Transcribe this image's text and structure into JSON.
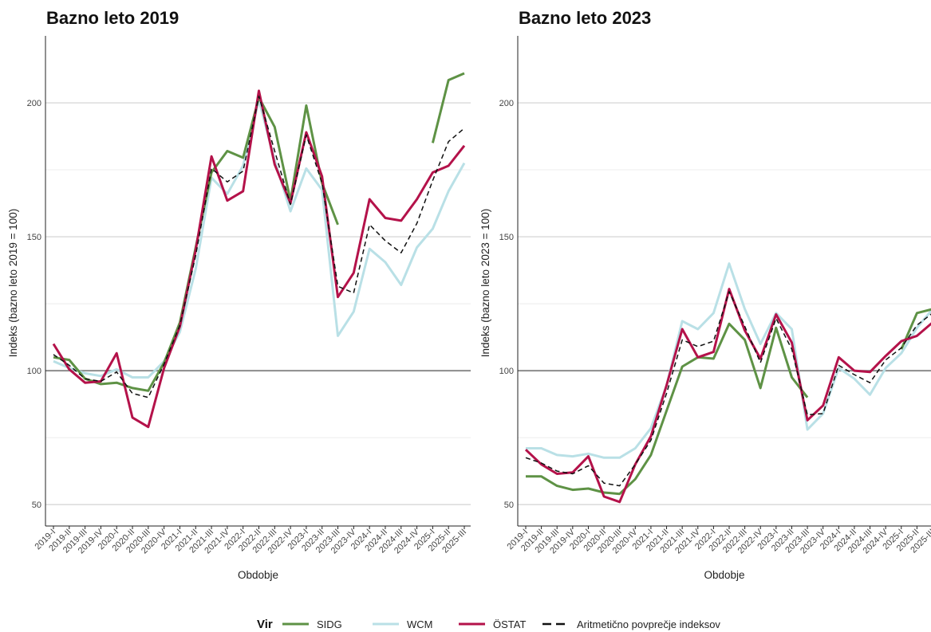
{
  "chart_data": [
    {
      "type": "line",
      "title": "Bazno leto 2019",
      "xlabel": "Obdobje",
      "ylabel": "Indeks (bazno leto 2019 = 100)",
      "ylim": [
        42,
        225
      ],
      "yticks": [
        50,
        100,
        150,
        200
      ],
      "reference_line": 100,
      "categories": [
        "2019-I",
        "2019-II",
        "2019-III",
        "2019-IV",
        "2020-I",
        "2020-II",
        "2020-III",
        "2020-IV",
        "2021-I",
        "2021-II",
        "2021-III",
        "2021-IV",
        "2022-I",
        "2022-II",
        "2022-III",
        "2022-IV",
        "2023-I",
        "2023-II",
        "2023-III",
        "2023-IV",
        "2024-I",
        "2024-II",
        "2024-III",
        "2024-IV",
        "2025-I",
        "2025-II",
        "2025-III"
      ],
      "series": [
        {
          "name": "SIDG",
          "values": [
            105,
            104,
            97,
            95,
            95.5,
            93.5,
            92.5,
            103,
            118,
            146,
            174,
            182,
            179.5,
            202,
            191,
            163.5,
            199,
            170,
            154.5,
            null,
            null,
            null,
            null,
            null,
            185,
            208.5,
            211
          ]
        },
        {
          "name": "WCM",
          "values": [
            103.5,
            101,
            99,
            98,
            100.5,
            97.5,
            97.5,
            103.5,
            114.5,
            138,
            172,
            166,
            176.5,
            201,
            178.5,
            159.5,
            175.5,
            167.5,
            113,
            122,
            145.5,
            140.5,
            132,
            146,
            153,
            167,
            177.5
          ]
        },
        {
          "name": "ÖSTAT",
          "values": [
            110,
            100.5,
            95.5,
            96,
            106.5,
            82.5,
            79,
            101,
            116.5,
            145,
            180,
            163.5,
            167,
            204.5,
            177,
            162.5,
            189,
            172.5,
            127.5,
            136.5,
            164,
            157,
            156,
            164,
            174,
            176.5,
            184
          ]
        },
        {
          "name": "Aritmetično povprečje indeksov",
          "values": [
            106,
            102,
            97,
            96,
            99.5,
            91.5,
            90,
            102.5,
            117,
            143,
            175.5,
            170.5,
            174.5,
            202.5,
            182,
            162,
            188,
            170,
            131.5,
            129,
            154.5,
            148.5,
            144,
            155,
            171,
            185.5,
            190.5
          ]
        }
      ]
    },
    {
      "type": "line",
      "title": "Bazno leto 2023",
      "xlabel": "Obdobje",
      "ylabel": "Indeks (bazno leto 2023 = 100)",
      "ylim": [
        42,
        225
      ],
      "yticks": [
        50,
        100,
        150,
        200
      ],
      "reference_line": 100,
      "categories": [
        "2019-I",
        "2019-II",
        "2019-III",
        "2019-IV",
        "2020-I",
        "2020-II",
        "2020-III",
        "2020-IV",
        "2021-I",
        "2021-II",
        "2021-III",
        "2021-IV",
        "2022-I",
        "2022-II",
        "2022-III",
        "2022-IV",
        "2023-I",
        "2023-II",
        "2023-III",
        "2023-IV",
        "2024-I",
        "2024-II",
        "2024-III",
        "2024-IV",
        "2025-I",
        "2025-II",
        "2025-III"
      ],
      "series": [
        {
          "name": "SIDG",
          "values": [
            60.5,
            60.5,
            57,
            55.5,
            56,
            54.5,
            54,
            59.5,
            68.5,
            85,
            101.5,
            105,
            104.5,
            117.5,
            111.5,
            93.5,
            116,
            97.5,
            90,
            null,
            null,
            null,
            null,
            null,
            108,
            121.5,
            123
          ]
        },
        {
          "name": "WCM",
          "values": [
            71,
            71,
            68.5,
            68,
            69,
            67.5,
            67.5,
            71,
            78.5,
            94.5,
            118.5,
            115.5,
            121.5,
            140,
            123,
            110,
            121.5,
            115.5,
            78,
            84,
            101,
            97,
            91,
            101,
            106.5,
            116,
            123
          ]
        },
        {
          "name": "ÖSTAT",
          "values": [
            70.5,
            65,
            61.5,
            62,
            68,
            53,
            51,
            65,
            75.5,
            94.5,
            115.5,
            105,
            107,
            130.5,
            115,
            104.5,
            121,
            110.5,
            81.5,
            87,
            105,
            100,
            99.5,
            105.5,
            111,
            113,
            118
          ]
        },
        {
          "name": "Aritmetično povprečje indeksov",
          "values": [
            67.5,
            65.5,
            62.5,
            61.5,
            64.5,
            58,
            57,
            65,
            74,
            91.5,
            111.5,
            109,
            111,
            129.5,
            116.5,
            103,
            119.5,
            108,
            83.5,
            84,
            102,
            98.5,
            95.5,
            104,
            108.5,
            117,
            121.5
          ]
        }
      ]
    }
  ],
  "legend": {
    "title": "Vir",
    "position": "bottom",
    "items": [
      {
        "label": "SIDG",
        "color": "#5e9245",
        "style": "solid"
      },
      {
        "label": "WCM",
        "color": "#b9e0e6",
        "style": "solid"
      },
      {
        "label": "ÖSTAT",
        "color": "#b4124a",
        "style": "solid"
      },
      {
        "label": "Aritmetično povprečje indeksov",
        "color": "#111111",
        "style": "dashed"
      }
    ]
  }
}
